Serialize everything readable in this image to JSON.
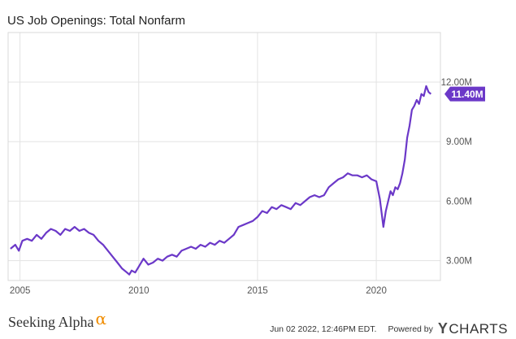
{
  "chart_data": {
    "type": "line",
    "title": "US Job Openings: Total Nonfarm",
    "series": [
      {
        "color": "#6b38c8",
        "x": [
          2004.6,
          2004.8,
          2004.95,
          2005.1,
          2005.3,
          2005.5,
          2005.7,
          2005.9,
          2006.1,
          2006.3,
          2006.5,
          2006.7,
          2006.9,
          2007.1,
          2007.3,
          2007.5,
          2007.7,
          2007.9,
          2008.1,
          2008.3,
          2008.5,
          2008.7,
          2008.9,
          2009.1,
          2009.3,
          2009.5,
          2009.6,
          2009.7,
          2009.85,
          2010.0,
          2010.2,
          2010.4,
          2010.6,
          2010.8,
          2011.0,
          2011.2,
          2011.4,
          2011.6,
          2011.8,
          2012.0,
          2012.2,
          2012.4,
          2012.6,
          2012.8,
          2013.0,
          2013.2,
          2013.4,
          2013.6,
          2013.8,
          2014.0,
          2014.2,
          2014.4,
          2014.6,
          2014.8,
          2015.0,
          2015.2,
          2015.4,
          2015.6,
          2015.8,
          2016.0,
          2016.2,
          2016.4,
          2016.6,
          2016.8,
          2017.0,
          2017.2,
          2017.4,
          2017.6,
          2017.8,
          2018.0,
          2018.2,
          2018.4,
          2018.6,
          2018.8,
          2019.0,
          2019.2,
          2019.4,
          2019.6,
          2019.8,
          2020.0,
          2020.15,
          2020.3,
          2020.4,
          2020.5,
          2020.6,
          2020.7,
          2020.8,
          2020.9,
          2021.0,
          2021.1,
          2021.2,
          2021.3,
          2021.4,
          2021.5,
          2021.6,
          2021.7,
          2021.8,
          2021.9,
          2022.0,
          2022.1,
          2022.2,
          2022.3
        ],
        "values": [
          3.6,
          3.8,
          3.5,
          4.0,
          4.1,
          4.0,
          4.3,
          4.1,
          4.4,
          4.6,
          4.5,
          4.3,
          4.6,
          4.5,
          4.7,
          4.5,
          4.6,
          4.4,
          4.3,
          4.0,
          3.8,
          3.5,
          3.2,
          2.9,
          2.6,
          2.4,
          2.3,
          2.5,
          2.4,
          2.7,
          3.1,
          2.8,
          2.9,
          3.1,
          3.0,
          3.2,
          3.3,
          3.2,
          3.5,
          3.6,
          3.7,
          3.6,
          3.8,
          3.7,
          3.9,
          3.8,
          4.0,
          3.9,
          4.1,
          4.3,
          4.7,
          4.8,
          4.9,
          5.0,
          5.2,
          5.5,
          5.4,
          5.7,
          5.6,
          5.8,
          5.7,
          5.6,
          5.9,
          5.8,
          6.0,
          6.2,
          6.3,
          6.2,
          6.3,
          6.7,
          6.9,
          7.1,
          7.2,
          7.4,
          7.3,
          7.3,
          7.2,
          7.3,
          7.1,
          7.0,
          6.1,
          4.7,
          5.5,
          6.0,
          6.5,
          6.3,
          6.7,
          6.6,
          6.9,
          7.4,
          8.1,
          9.2,
          9.8,
          10.6,
          10.8,
          11.1,
          10.9,
          11.4,
          11.3,
          11.8,
          11.5,
          11.4
        ]
      }
    ],
    "xlim": [
      2004.5,
      2022.7
    ],
    "ylim": [
      2.0,
      14.5
    ],
    "x_ticks": [
      2005,
      2010,
      2015,
      2020
    ],
    "x_tick_labels": [
      "2005",
      "2010",
      "2015",
      "2020"
    ],
    "y_ticks": [
      3,
      6,
      9,
      12
    ],
    "y_tick_labels": [
      "3.00M",
      "6.00M",
      "9.00M",
      "12.00M"
    ],
    "last_value_label": "11.40M",
    "grid": true,
    "legend": "none"
  },
  "footer": {
    "brand": "Seeking Alpha",
    "brand_symbol": "α",
    "date": "Jun 02 2022, 12:46PM EDT.",
    "powered_by": "Powered by",
    "ycharts_y": "Y",
    "ycharts_rest": "CHARTS"
  }
}
